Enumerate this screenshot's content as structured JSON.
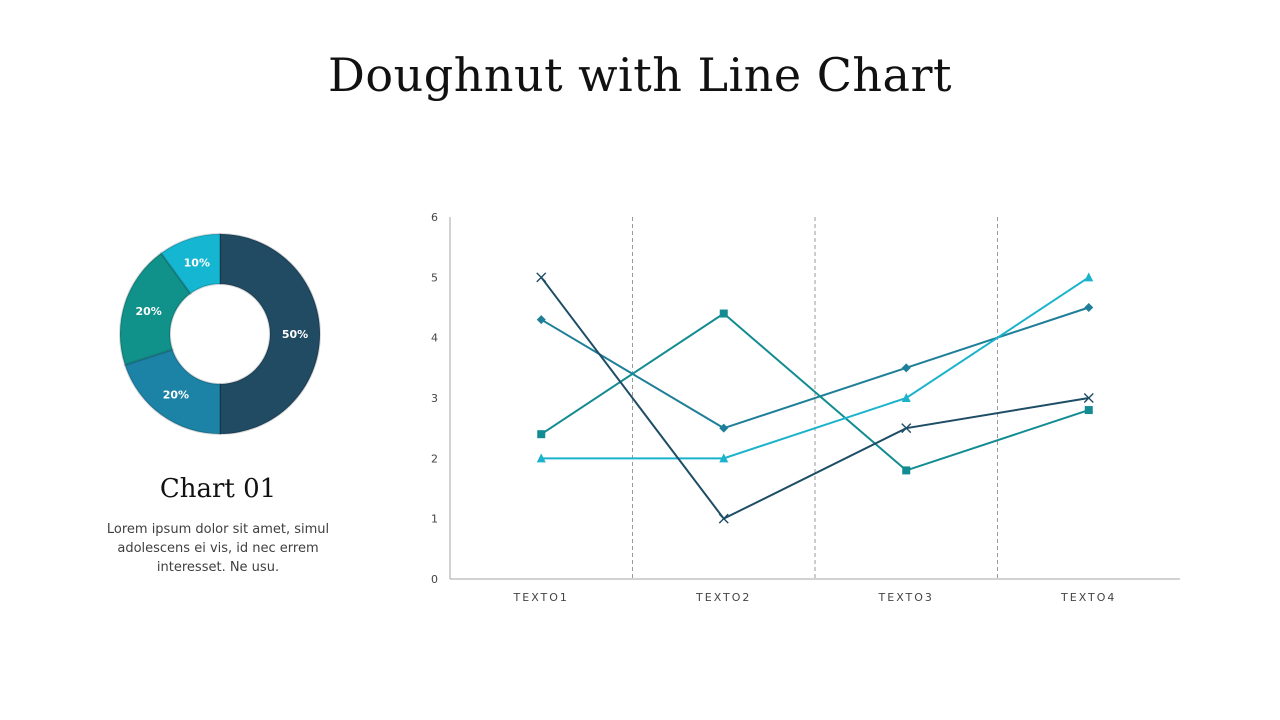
{
  "title": "Doughnut with Line Chart",
  "caption": {
    "heading": "Chart 01",
    "text": "Lorem ipsum dolor sit amet, simul adolescens ei vis, id nec errem interesset. Ne usu."
  },
  "chart_data": [
    {
      "type": "doughnut",
      "title": "",
      "slices": [
        {
          "label": "50%",
          "value": 50,
          "color": "#214a63"
        },
        {
          "label": "20%",
          "value": 20,
          "color": "#1c83a6"
        },
        {
          "label": "20%",
          "value": 20,
          "color": "#10918a"
        },
        {
          "label": "10%",
          "value": 10,
          "color": "#15b6d1"
        }
      ]
    },
    {
      "type": "line",
      "title": "",
      "categories": [
        "TEXTO1",
        "TEXTO2",
        "TEXTO3",
        "TEXTO4"
      ],
      "ylim": [
        0,
        6
      ],
      "yticks": [
        0,
        1,
        2,
        3,
        4,
        5,
        6
      ],
      "grid": "dashed vertical separators between categories",
      "legend": "none",
      "series": [
        {
          "values": [
            4.3,
            2.5,
            3.5,
            4.5
          ],
          "color": "#1f7f99",
          "marker": "diamond"
        },
        {
          "values": [
            2.4,
            4.4,
            1.8,
            2.8
          ],
          "color": "#128b92",
          "marker": "square"
        },
        {
          "values": [
            2.0,
            2.0,
            3.0,
            5.0
          ],
          "color": "#1bb3cc",
          "marker": "triangle"
        },
        {
          "values": [
            5.0,
            1.0,
            2.5,
            3.0
          ],
          "color": "#1e4d66",
          "marker": "x"
        }
      ]
    }
  ]
}
